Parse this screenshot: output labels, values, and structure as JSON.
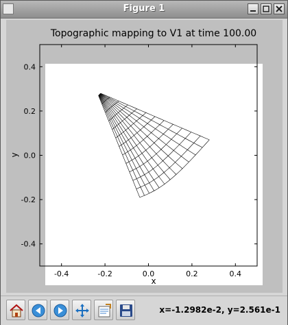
{
  "window": {
    "title": "Figure 1"
  },
  "chart_data": {
    "type": "line",
    "title": "Topographic mapping to V1 at time 100.00",
    "xlabel": "x",
    "ylabel": "y",
    "xlim": [
      -0.5,
      0.5
    ],
    "ylim": [
      -0.5,
      0.5
    ],
    "xticks": [
      "-0.4",
      "-0.2",
      "0.0",
      "0.2",
      "0.4"
    ],
    "yticks": [
      "0.4",
      "0.2",
      "0.0",
      "-0.2",
      "-0.4"
    ],
    "mesh_corners": {
      "top_left": [
        -0.23,
        0.27
      ],
      "top_right": [
        -0.22,
        0.28
      ],
      "bottom_left": [
        -0.04,
        -0.19
      ],
      "bottom_right": [
        0.28,
        0.07
      ]
    },
    "mesh_grid": [
      12,
      12
    ],
    "grid": false
  },
  "toolbar": {
    "buttons": [
      "home",
      "back",
      "forward",
      "pan",
      "configure-subplots",
      "save"
    ],
    "coordinates": "x=-1.2982e-2, y=2.561e-1"
  }
}
